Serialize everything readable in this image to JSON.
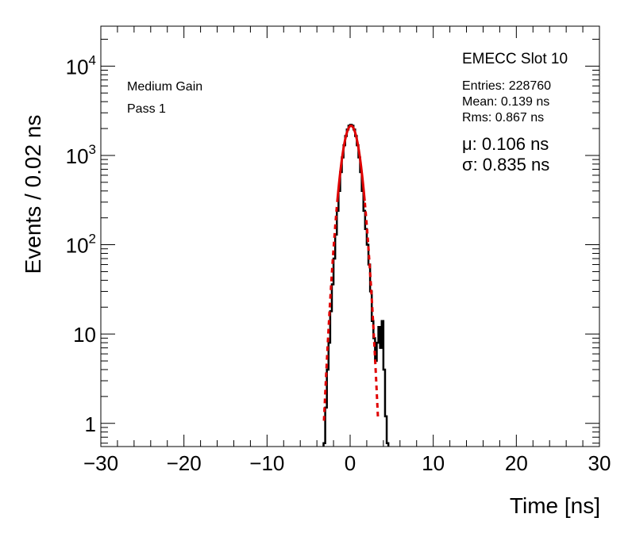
{
  "chart_data": {
    "type": "histogram",
    "title": "EMECC Slot 10",
    "xlabel": "Time [ns]",
    "ylabel": "Events / 0.02 ns",
    "xlim": [
      -30,
      30
    ],
    "ylim": [
      0.55,
      28000
    ],
    "yscale": "log",
    "x_ticks": [
      -30,
      -20,
      -10,
      0,
      10,
      20,
      30
    ],
    "x_tick_labels": [
      "−30",
      "−20",
      "−10",
      "0",
      "10",
      "20",
      "30"
    ],
    "y_ticks": [
      1,
      10,
      100,
      1000,
      10000
    ],
    "y_tick_labels": [
      {
        "base": "1",
        "exp": ""
      },
      {
        "base": "10",
        "exp": ""
      },
      {
        "base": "10",
        "exp": "2"
      },
      {
        "base": "10",
        "exp": "3"
      },
      {
        "base": "10",
        "exp": "4"
      }
    ],
    "annotations": {
      "gain": "Medium Gain",
      "pass": "Pass 1"
    },
    "stats": {
      "entries": "Entries: 228760",
      "mean": "Mean: 0.139 ns",
      "rms": "Rms: 0.867 ns"
    },
    "fit": {
      "mu_label": "μ: 0.106 ns",
      "sigma_label": "σ: 0.835 ns",
      "mu": 0.106,
      "sigma": 0.835,
      "amplitude": 2150,
      "color": "#e00000"
    },
    "series": [
      {
        "name": "data",
        "color": "#000000",
        "x": [
          -3.1,
          -2.9,
          -2.7,
          -2.5,
          -2.3,
          -2.1,
          -1.9,
          -1.7,
          -1.5,
          -1.3,
          -1.1,
          -0.9,
          -0.7,
          -0.5,
          -0.3,
          -0.1,
          0.1,
          0.3,
          0.5,
          0.7,
          0.9,
          1.1,
          1.3,
          1.5,
          1.7,
          1.9,
          2.1,
          2.3,
          2.5,
          2.7,
          2.9,
          3.1,
          3.3,
          3.5,
          3.7,
          3.9,
          4.1,
          4.3,
          4.5
        ],
        "y": [
          0.6,
          1.5,
          4,
          8,
          18,
          36,
          70,
          130,
          240,
          400,
          650,
          950,
          1300,
          1650,
          1950,
          2150,
          2200,
          2150,
          1950,
          1650,
          1300,
          950,
          650,
          400,
          240,
          150,
          100,
          60,
          30,
          14,
          9,
          5,
          8,
          12,
          7,
          14,
          4,
          1.2,
          0.6
        ]
      }
    ]
  }
}
